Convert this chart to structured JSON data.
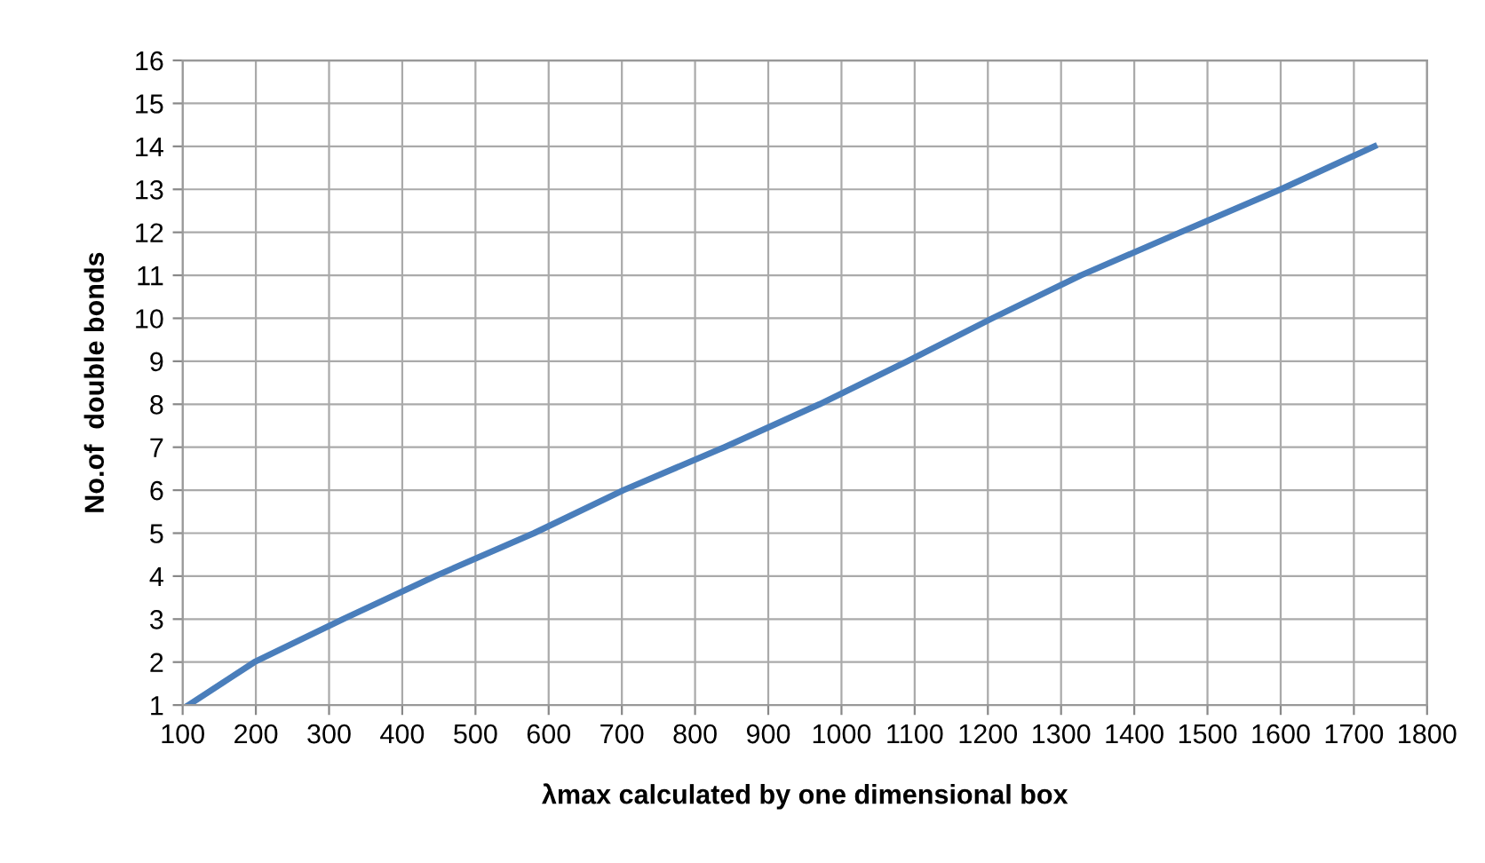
{
  "chart_data": {
    "type": "line",
    "xlabel": "λmax calculated by one dimensional box",
    "ylabel": "No.of  double bonds",
    "x": [
      108,
      198,
      319,
      445,
      580,
      702,
      840,
      970,
      1090,
      1206,
      1327,
      1463,
      1600,
      1728
    ],
    "series": [
      {
        "color": "#4a7ebb",
        "values": [
          1,
          2,
          3,
          4,
          5,
          6,
          7,
          8,
          9,
          10,
          11,
          12,
          13,
          14
        ]
      }
    ],
    "xlim": [
      100,
      1800
    ],
    "xticks": [
      100,
      200,
      300,
      400,
      500,
      600,
      700,
      800,
      900,
      1000,
      1100,
      1200,
      1300,
      1400,
      1500,
      1600,
      1700,
      1800
    ],
    "ylim": [
      1,
      16
    ],
    "yticks": [
      1,
      2,
      3,
      4,
      5,
      6,
      7,
      8,
      9,
      10,
      11,
      12,
      13,
      14,
      15,
      16
    ],
    "grid": true,
    "legend": false,
    "marker": "none",
    "line_style": "solid"
  }
}
